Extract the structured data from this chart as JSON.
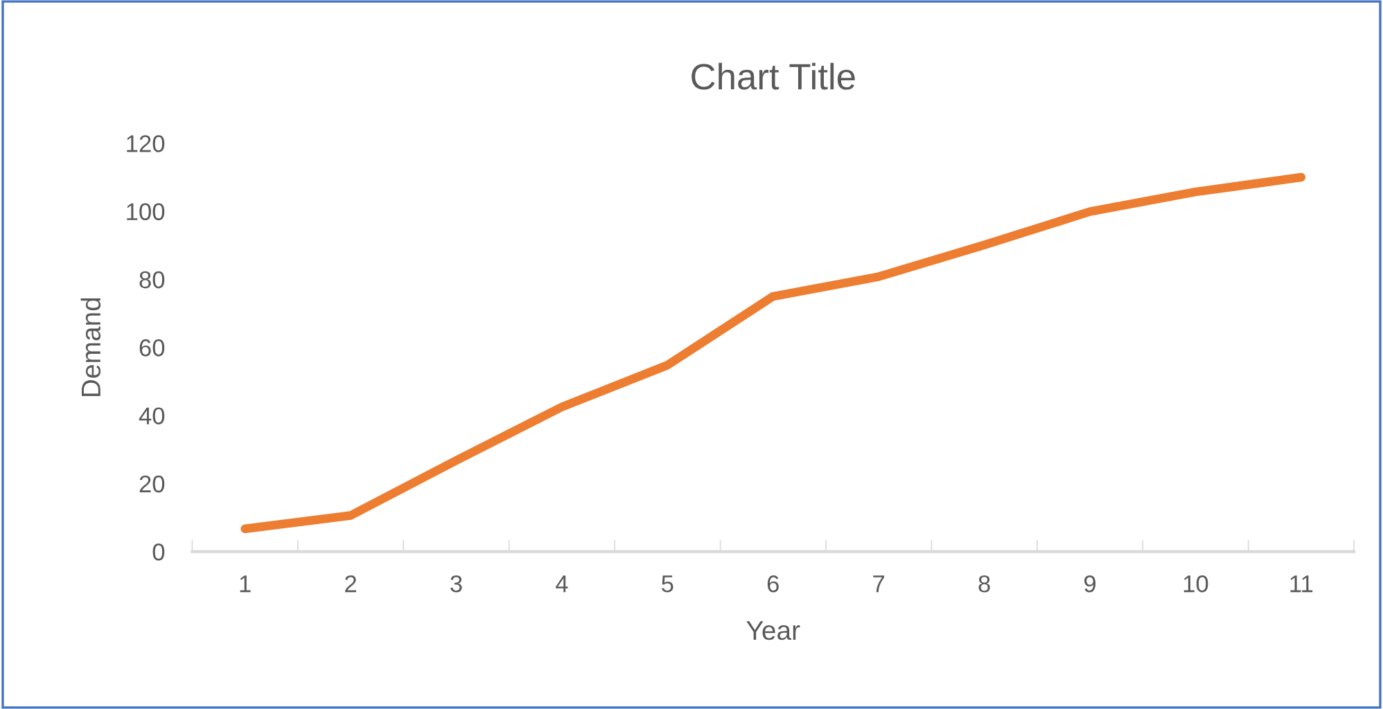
{
  "chart_data": {
    "type": "line",
    "title": "Chart Title",
    "xlabel": "Year",
    "ylabel": "Demand",
    "categories": [
      "1",
      "2",
      "3",
      "4",
      "5",
      "6",
      "7",
      "8",
      "9",
      "10",
      "11"
    ],
    "series": [
      {
        "color": "#ed7d31",
        "values": [
          6.7,
          10.6,
          26.8,
          42.5,
          54.8,
          75.0,
          80.8,
          90.1,
          99.9,
          105.7,
          110
        ]
      }
    ],
    "ylim": [
      0,
      120
    ],
    "yticks": [
      0,
      20,
      40,
      60,
      80,
      100,
      120
    ],
    "grid": false,
    "legend": false,
    "marker": "none",
    "line_style": "solid"
  }
}
